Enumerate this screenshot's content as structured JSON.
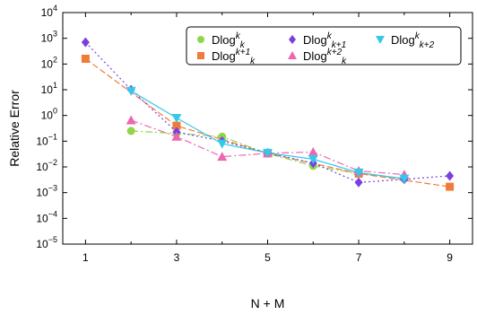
{
  "chart_data": {
    "type": "line",
    "xlabel": "N + M",
    "ylabel": "Relative Error",
    "xlim": [
      0.5,
      9.5
    ],
    "ylim_log10": [
      -5,
      4
    ],
    "yscale": "log",
    "grid": false,
    "legend_placement": "top-right",
    "x_ticks": [
      {
        "value": 1,
        "label": "1"
      },
      {
        "value": 3,
        "label": "3"
      },
      {
        "value": 5,
        "label": "5"
      },
      {
        "value": 7,
        "label": "7"
      },
      {
        "value": 9,
        "label": "9"
      }
    ],
    "y_ticks": [
      {
        "exp": 4,
        "label": "10",
        "sup": "4"
      },
      {
        "exp": 3,
        "label": "10",
        "sup": "3"
      },
      {
        "exp": 2,
        "label": "10",
        "sup": "2"
      },
      {
        "exp": 1,
        "label": "10",
        "sup": "1"
      },
      {
        "exp": 0,
        "label": "10",
        "sup": "0"
      },
      {
        "exp": -1,
        "label": "10",
        "sup": "−1"
      },
      {
        "exp": -2,
        "label": "10",
        "sup": "−2"
      },
      {
        "exp": -3,
        "label": "10",
        "sup": "−3"
      },
      {
        "exp": -4,
        "label": "10",
        "sup": "−4"
      },
      {
        "exp": -5,
        "label": "10",
        "sup": "−5"
      }
    ],
    "series": [
      {
        "name": "Dlog^k_k",
        "legend_parts": [
          {
            "t": "Dlog",
            "s": "n"
          },
          {
            "t": "k",
            "s": "sup"
          },
          {
            "t": "k",
            "s": "sub"
          }
        ],
        "color": "#8fd64a",
        "marker": "circle",
        "dash": "8 3 2 3",
        "x": [
          2,
          3,
          4,
          5,
          6,
          7,
          8
        ],
        "y": [
          0.25,
          0.2,
          0.15,
          0.033,
          0.011,
          0.0055,
          0.0035
        ]
      },
      {
        "name": "Dlog^(k+1)_k",
        "legend_parts": [
          {
            "t": "Dlog",
            "s": "n"
          },
          {
            "t": "k+1",
            "s": "sup"
          },
          {
            "t": "k",
            "s": "sub"
          }
        ],
        "color": "#ef7b3a",
        "marker": "square",
        "dash": "7 3",
        "x": [
          1,
          3,
          5,
          7,
          9
        ],
        "y": [
          160,
          0.4,
          0.034,
          0.0055,
          0.0017
        ]
      },
      {
        "name": "Dlog^k_(k+1)",
        "legend_parts": [
          {
            "t": "Dlog",
            "s": "n"
          },
          {
            "t": "k",
            "s": "sup"
          },
          {
            "t": "k+1",
            "s": "sub"
          }
        ],
        "color": "#7b3fe0",
        "marker": "diamond",
        "dash": "2 3",
        "x": [
          1,
          2,
          3,
          4,
          5,
          6,
          7,
          8,
          9
        ],
        "y": [
          700,
          10,
          0.23,
          0.1,
          0.035,
          0.014,
          0.0025,
          0.0033,
          0.0045
        ]
      },
      {
        "name": "Dlog^(k+2)_k",
        "legend_parts": [
          {
            "t": "Dlog",
            "s": "n"
          },
          {
            "t": "k+2",
            "s": "sup"
          },
          {
            "t": "k",
            "s": "sub"
          }
        ],
        "color": "#ee66b0",
        "marker": "triangle-up",
        "dash": "8 3 2 3",
        "x": [
          2,
          3,
          4,
          5,
          6,
          7,
          8
        ],
        "y": [
          0.65,
          0.15,
          0.025,
          0.034,
          0.038,
          0.007,
          0.005
        ]
      },
      {
        "name": "Dlog^k_(k+2)",
        "legend_parts": [
          {
            "t": "Dlog",
            "s": "n"
          },
          {
            "t": "k",
            "s": "sup"
          },
          {
            "t": "k+2",
            "s": "sub"
          }
        ],
        "color": "#35c8ea",
        "marker": "triangle-down",
        "dash": "",
        "x": [
          2,
          3,
          4,
          5,
          6,
          7,
          8
        ],
        "y": [
          9,
          0.8,
          0.08,
          0.035,
          0.02,
          0.006,
          0.0035
        ]
      }
    ]
  }
}
